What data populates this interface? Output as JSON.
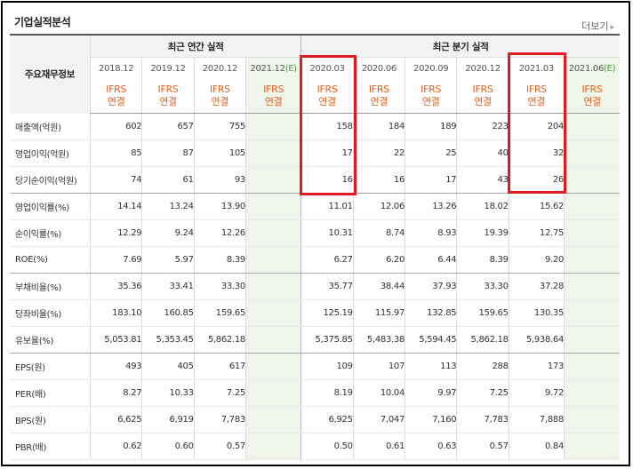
{
  "title": "기업실적분석",
  "more_label": "더보기",
  "header": {
    "row_label": "주요재무정보",
    "annual_group": "최근 연간 실적",
    "quarter_group": "최근 분기 실적",
    "annual_periods": [
      "2018.12",
      "2019.12",
      "2020.12",
      "2021.12"
    ],
    "annual_estimate_mark": "(E)",
    "quarter_periods": [
      "2020.03",
      "2020.06",
      "2020.09",
      "2020.12",
      "2021.03",
      "2021.06"
    ],
    "quarter_estimate_mark": "(E)",
    "basis_top": "IFRS",
    "basis_bottom": "연결"
  },
  "rows": [
    {
      "label": "매출액(억원)",
      "annual": [
        "602",
        "657",
        "755",
        ""
      ],
      "quarter": [
        "158",
        "184",
        "189",
        "223",
        "204",
        ""
      ]
    },
    {
      "label": "영업이익(억원)",
      "annual": [
        "85",
        "87",
        "105",
        ""
      ],
      "quarter": [
        "17",
        "22",
        "25",
        "40",
        "32",
        ""
      ]
    },
    {
      "label": "당기순이익(억원)",
      "annual": [
        "74",
        "61",
        "93",
        ""
      ],
      "quarter": [
        "16",
        "16",
        "17",
        "43",
        "26",
        ""
      ]
    },
    {
      "label": "영업이익률(%)",
      "annual": [
        "14.14",
        "13.24",
        "13.90",
        ""
      ],
      "quarter": [
        "11.01",
        "12.06",
        "13.26",
        "18.02",
        "15.62",
        ""
      ]
    },
    {
      "label": "순이익률(%)",
      "annual": [
        "12.29",
        "9.24",
        "12.26",
        ""
      ],
      "quarter": [
        "10.31",
        "8.74",
        "8.93",
        "19.39",
        "12.75",
        ""
      ]
    },
    {
      "label": "ROE(%)",
      "annual": [
        "7.69",
        "5.97",
        "8.39",
        ""
      ],
      "quarter": [
        "6.27",
        "6.20",
        "6.44",
        "8.39",
        "9.20",
        ""
      ]
    },
    {
      "label": "부채비율(%)",
      "annual": [
        "35.36",
        "33.41",
        "33.30",
        ""
      ],
      "quarter": [
        "35.77",
        "38.44",
        "37.93",
        "33.30",
        "37.28",
        ""
      ]
    },
    {
      "label": "당좌비율(%)",
      "annual": [
        "183.10",
        "160.85",
        "159.65",
        ""
      ],
      "quarter": [
        "125.19",
        "115.97",
        "132.85",
        "159.65",
        "130.35",
        ""
      ]
    },
    {
      "label": "유보율(%)",
      "annual": [
        "5,053.81",
        "5,353.45",
        "5,862.18",
        ""
      ],
      "quarter": [
        "5,375.85",
        "5,483.38",
        "5,594.45",
        "5,862.18",
        "5,938.64",
        ""
      ]
    },
    {
      "label": "EPS(원)",
      "annual": [
        "493",
        "405",
        "617",
        ""
      ],
      "quarter": [
        "109",
        "107",
        "113",
        "288",
        "173",
        ""
      ]
    },
    {
      "label": "PER(배)",
      "annual": [
        "8.27",
        "10.33",
        "7.25",
        ""
      ],
      "quarter": [
        "8.19",
        "10.04",
        "9.97",
        "7.25",
        "9.72",
        ""
      ]
    },
    {
      "label": "BPS(원)",
      "annual": [
        "6,625",
        "6,919",
        "7,783",
        ""
      ],
      "quarter": [
        "6,925",
        "7,047",
        "7,160",
        "7,783",
        "7,888",
        ""
      ]
    },
    {
      "label": "PBR(배)",
      "annual": [
        "0.62",
        "0.60",
        "0.57",
        ""
      ],
      "quarter": [
        "0.50",
        "0.61",
        "0.63",
        "0.57",
        "0.84",
        ""
      ]
    }
  ],
  "highlight_color": "#e01a22"
}
